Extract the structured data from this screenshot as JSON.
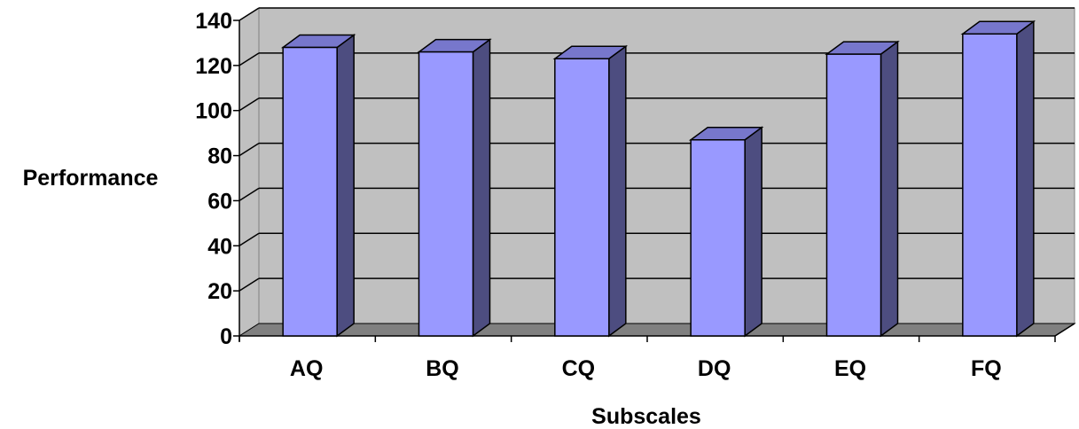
{
  "chart_data": {
    "type": "bar",
    "title": "",
    "xlabel": "Subscales",
    "ylabel": "Performance",
    "categories": [
      "AQ",
      "BQ",
      "CQ",
      "DQ",
      "EQ",
      "FQ"
    ],
    "values": [
      128,
      126,
      123,
      87,
      125,
      134
    ],
    "ylim": [
      0,
      140
    ],
    "yticks": [
      "0",
      "20",
      "40",
      "60",
      "80",
      "100",
      "120",
      "140"
    ],
    "grid": true,
    "legend": "none",
    "style": "3d-column"
  },
  "colors": {
    "wall": "#c0c0c0",
    "floor": "#808080",
    "bar_front": "#9999ff",
    "bar_side": "#4d4d80",
    "bar_top": "#7777cc",
    "grid": "#000000"
  }
}
